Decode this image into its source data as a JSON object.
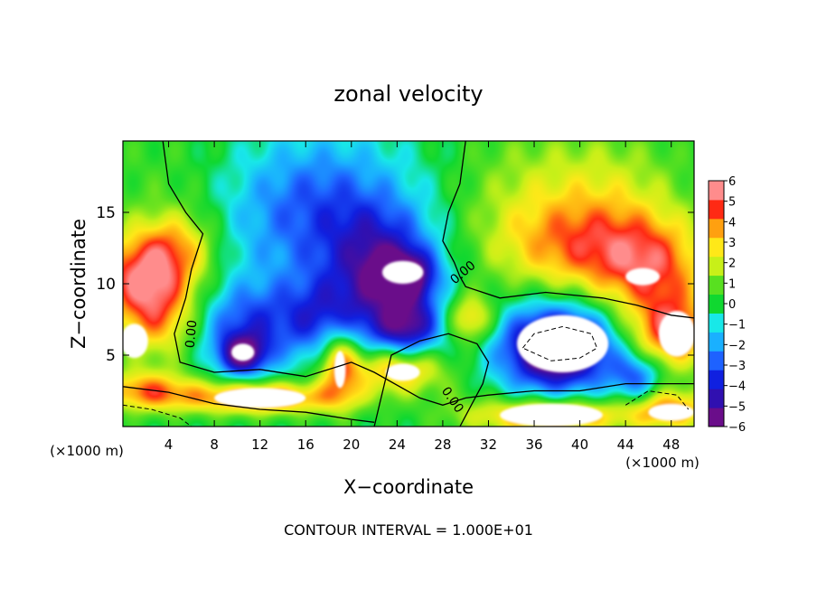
{
  "chart_data": {
    "type": "heatmap",
    "title": "zonal velocity",
    "xlabel": "X−coordinate",
    "ylabel": "Z−coordinate",
    "x_unit_left": "(×1000 m)",
    "x_unit_right": "(×1000 m)",
    "footer": "CONTOUR INTERVAL = 1.000E+01",
    "xlim": [
      0,
      50
    ],
    "ylim": [
      0,
      20
    ],
    "x_ticks": [
      4,
      8,
      12,
      16,
      20,
      24,
      28,
      32,
      36,
      40,
      44,
      48
    ],
    "y_ticks": [
      5,
      10,
      15
    ],
    "contour_labels": [
      "0.00",
      "0.00",
      "0.00"
    ],
    "colorbar": {
      "ticks": [
        "6",
        "5",
        "4",
        "3",
        "2",
        "1",
        "0",
        "−1",
        "−2",
        "−3",
        "−4",
        "−5",
        "−6"
      ],
      "range": [
        -6,
        6
      ],
      "colors": [
        "#6a0d8a",
        "#3010b0",
        "#1020e0",
        "#1e62ff",
        "#1ab0ff",
        "#18e8e8",
        "#10d830",
        "#58e020",
        "#c8f018",
        "#ffe818",
        "#ffa010",
        "#ff2a14",
        "#ff8c8c"
      ]
    },
    "blobs": [
      {
        "x": 4.0,
        "z": 16.0,
        "v": 0.7,
        "sx": 5.5,
        "sz": 4.5
      },
      {
        "x": 1.5,
        "z": 10.5,
        "v": 4.5,
        "sx": 3.0,
        "sz": 2.0
      },
      {
        "x": 3.0,
        "z": 7.5,
        "v": 3.5,
        "sx": 2.5,
        "sz": 2.0
      },
      {
        "x": 4.5,
        "z": 12.5,
        "v": 3.0,
        "sx": 2.5,
        "sz": 1.8
      },
      {
        "x": 14.0,
        "z": 14.0,
        "v": -2.0,
        "sx": 5.0,
        "sz": 4.0
      },
      {
        "x": 19.0,
        "z": 16.5,
        "v": -1.8,
        "sx": 5.0,
        "sz": 3.0
      },
      {
        "x": 22.5,
        "z": 12.0,
        "v": -4.0,
        "sx": 3.5,
        "sz": 2.5
      },
      {
        "x": 24.5,
        "z": 10.5,
        "v": -5.5,
        "sx": 2.0,
        "sz": 1.2
      },
      {
        "x": 18.5,
        "z": 7.5,
        "v": -4.0,
        "sx": 3.5,
        "sz": 2.0
      },
      {
        "x": 10.5,
        "z": 7.0,
        "v": -3.0,
        "sx": 3.0,
        "sz": 2.0
      },
      {
        "x": 10.5,
        "z": 5.0,
        "v": -5.0,
        "sx": 1.5,
        "sz": 1.0
      },
      {
        "x": 25.0,
        "z": 7.0,
        "v": -5.0,
        "sx": 2.0,
        "sz": 1.5
      },
      {
        "x": 30.5,
        "z": 7.5,
        "v": 3.5,
        "sx": 1.4,
        "sz": 1.2
      },
      {
        "x": 34.0,
        "z": 16.0,
        "v": 1.0,
        "sx": 4.0,
        "sz": 4.0
      },
      {
        "x": 40.0,
        "z": 12.5,
        "v": 3.8,
        "sx": 5.0,
        "sz": 2.5
      },
      {
        "x": 46.5,
        "z": 11.0,
        "v": 4.0,
        "sx": 3.5,
        "sz": 2.5
      },
      {
        "x": 42.0,
        "z": 17.0,
        "v": 1.8,
        "sx": 5.0,
        "sz": 3.0
      },
      {
        "x": 38.0,
        "z": 5.5,
        "v": -4.5,
        "sx": 4.0,
        "sz": 2.5
      },
      {
        "x": 38.0,
        "z": 5.5,
        "v": -4.0,
        "sx": 2.5,
        "sz": 1.5
      },
      {
        "x": 48.0,
        "z": 6.5,
        "v": 5.0,
        "sx": 2.5,
        "sz": 1.8
      },
      {
        "x": 12.0,
        "z": 2.0,
        "v": 5.0,
        "sx": 5.0,
        "sz": 0.8
      },
      {
        "x": 2.0,
        "z": 2.5,
        "v": 4.0,
        "sx": 3.0,
        "sz": 1.0
      },
      {
        "x": 19.0,
        "z": 4.5,
        "v": 4.5,
        "sx": 1.3,
        "sz": 2.0
      },
      {
        "x": 24.0,
        "z": 4.0,
        "v": 4.0,
        "sx": 3.0,
        "sz": 1.2
      },
      {
        "x": 37.5,
        "z": 0.7,
        "v": 4.8,
        "sx": 5.0,
        "sz": 0.9
      },
      {
        "x": 48.0,
        "z": 1.2,
        "v": 4.0,
        "sx": 2.5,
        "sz": 1.0
      },
      {
        "x": 30.0,
        "z": 2.0,
        "v": 0.5,
        "sx": 2.0,
        "sz": 1.0
      },
      {
        "x": 45.0,
        "z": 3.5,
        "v": -3.0,
        "sx": 1.5,
        "sz": 1.2
      }
    ],
    "white_patches": [
      {
        "x": 24.5,
        "z": 10.8,
        "rx": 1.8,
        "rz": 0.8
      },
      {
        "x": 38.5,
        "z": 5.8,
        "rx": 4.0,
        "rz": 2.0
      },
      {
        "x": 48.5,
        "z": 6.5,
        "rx": 1.6,
        "rz": 1.6
      },
      {
        "x": 1.0,
        "z": 6.0,
        "rx": 1.2,
        "rz": 1.2
      },
      {
        "x": 10.5,
        "z": 5.2,
        "rx": 1.0,
        "rz": 0.6
      },
      {
        "x": 12.0,
        "z": 2.0,
        "rx": 4.0,
        "rz": 0.7
      },
      {
        "x": 37.5,
        "z": 0.8,
        "rx": 4.5,
        "rz": 0.8
      },
      {
        "x": 45.5,
        "z": 10.5,
        "rx": 1.5,
        "rz": 0.6
      },
      {
        "x": 48.0,
        "z": 1.0,
        "rx": 2.0,
        "rz": 0.6
      },
      {
        "x": 19.0,
        "z": 4.0,
        "rx": 0.5,
        "rz": 1.3
      },
      {
        "x": 24.5,
        "z": 3.8,
        "rx": 1.5,
        "rz": 0.6
      }
    ],
    "zero_contours": [
      [
        [
          3.5,
          20
        ],
        [
          4.0,
          17
        ],
        [
          5.5,
          15
        ],
        [
          7.0,
          13.5
        ],
        [
          6.0,
          11
        ],
        [
          5.5,
          9
        ],
        [
          4.5,
          6.5
        ],
        [
          5.0,
          4.5
        ],
        [
          8.0,
          3.8
        ],
        [
          12.0,
          4.0
        ],
        [
          16.0,
          3.5
        ],
        [
          20.0,
          4.5
        ],
        [
          22.0,
          3.8
        ],
        [
          26.0,
          2.0
        ],
        [
          28.0,
          1.5
        ],
        [
          30.0,
          2.0
        ],
        [
          32.0,
          2.2
        ],
        [
          36.0,
          2.5
        ],
        [
          40.0,
          2.5
        ],
        [
          44.0,
          3.0
        ],
        [
          48.0,
          3.0
        ],
        [
          50.0,
          3.0
        ]
      ],
      [
        [
          30.0,
          20
        ],
        [
          29.5,
          17
        ],
        [
          28.5,
          15
        ],
        [
          28.0,
          13
        ],
        [
          29.0,
          11.5
        ],
        [
          29.5,
          10.5
        ],
        [
          30.0,
          9.8
        ],
        [
          33.0,
          9.0
        ],
        [
          37.0,
          9.4
        ],
        [
          42.0,
          9.0
        ],
        [
          45.0,
          8.5
        ],
        [
          48.0,
          7.8
        ],
        [
          50.0,
          7.6
        ]
      ],
      [
        [
          0.0,
          2.8
        ],
        [
          4.0,
          2.4
        ],
        [
          8.0,
          1.6
        ],
        [
          12.0,
          1.2
        ],
        [
          16.0,
          1.0
        ],
        [
          20.0,
          0.5
        ],
        [
          22.0,
          0.3
        ]
      ],
      [
        [
          22.0,
          0.0
        ],
        [
          23.5,
          5.0
        ],
        [
          26.0,
          6.0
        ],
        [
          28.5,
          6.5
        ],
        [
          31.0,
          5.8
        ],
        [
          32.0,
          4.5
        ],
        [
          31.5,
          3.0
        ],
        [
          30.5,
          1.5
        ],
        [
          29.5,
          0.0
        ]
      ]
    ],
    "neg_contours": [
      [
        [
          35.0,
          5.5
        ],
        [
          36.0,
          6.5
        ],
        [
          38.5,
          7.0
        ],
        [
          41.0,
          6.5
        ],
        [
          41.5,
          5.5
        ],
        [
          40.0,
          4.8
        ],
        [
          37.5,
          4.6
        ],
        [
          35.0,
          5.5
        ]
      ],
      [
        [
          44.0,
          1.5
        ],
        [
          46.0,
          2.5
        ],
        [
          48.5,
          2.2
        ],
        [
          49.5,
          1.2
        ]
      ],
      [
        [
          0.0,
          1.5
        ],
        [
          2.5,
          1.2
        ],
        [
          5.0,
          0.6
        ],
        [
          6.0,
          0.0
        ]
      ]
    ]
  }
}
